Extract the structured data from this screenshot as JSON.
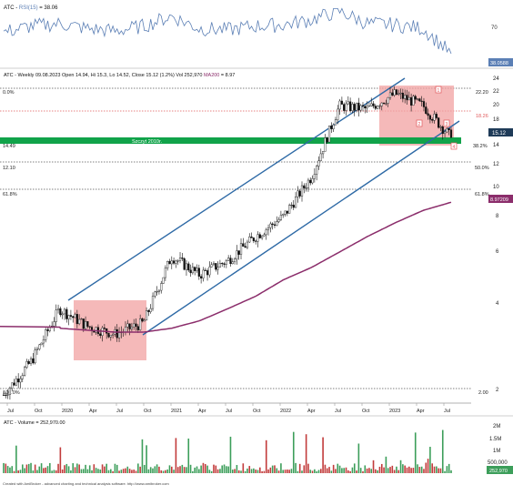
{
  "colors": {
    "rsi_line": "#5b7fb5",
    "price_candle": "#111111",
    "channel": "#2e6aa6",
    "ma200": "#8b2d6b",
    "zone_fill": "#f2a2a2",
    "support_band": "#11a34a",
    "support_label": "#2f8f3a",
    "level_red": "#e0585a",
    "volume_green": "#3c9e5a",
    "volume_red": "#c23b3b",
    "last_price_box": "#1f3b58",
    "grid": "#dcdcdc"
  },
  "rsi_panel": {
    "title_prefix": "ATC - ",
    "title_indicator": "RSI(15)",
    "title_value": " = 38.06",
    "level_label": "70",
    "last_value": "38.0588"
  },
  "price_panel": {
    "title_text": "ATC - Weekly 09.08.2023 Open 14.94, Hi 15.3, Lo 14.52, Close 15.12 (1.2%) Vol 252,970 ",
    "ma_label": "MA200",
    "ma_value": " = 8.97",
    "support_label": "Szczyt 2010r.",
    "fib_left": [
      "0.0%",
      "14.49",
      "12.10",
      "61.8%",
      "100.0%"
    ],
    "fib_right": [
      "22.20",
      "18.26",
      "38.2%",
      "50.0%",
      "61.8%",
      "2.00"
    ],
    "axis_labels": [
      "24",
      "22",
      "20",
      "18",
      "16",
      "14",
      "12",
      "10",
      "8",
      "6",
      "4",
      "2"
    ],
    "last_price": "15.12",
    "ma_last": "8.97209",
    "zone_marks": [
      "1",
      "2",
      "3",
      "4"
    ]
  },
  "x_axis": {
    "labels": [
      "Jul",
      "Oct",
      "2020",
      "Apr",
      "Jul",
      "Oct",
      "2021",
      "Apr",
      "Jul",
      "Oct",
      "2022",
      "Apr",
      "Jul",
      "Oct",
      "2023",
      "Apr",
      "Jul"
    ]
  },
  "volume_panel": {
    "title": "ATC - Volume = 252,970.00",
    "axis_labels": [
      "2M",
      "1.5M",
      "1M",
      "500,000"
    ],
    "last_value": "252,970"
  },
  "footer": {
    "credit": "Created with AmiBroker - advanced charting and technical analysis software. http://www.amibroker.com"
  },
  "chart_data": [
    {
      "type": "line",
      "title": "ATC - RSI(15) = 38.06",
      "ylim": [
        30,
        75
      ],
      "x": [
        "2019-07",
        "2019-10",
        "2020-01",
        "2020-04",
        "2020-07",
        "2020-10",
        "2021-01",
        "2021-04",
        "2021-07",
        "2021-10",
        "2022-01",
        "2022-04",
        "2022-07",
        "2022-10",
        "2023-01",
        "2023-04",
        "2023-08"
      ],
      "series": [
        {
          "values": [
            55,
            60,
            62,
            58,
            56,
            60,
            68,
            58,
            57,
            60,
            61,
            65,
            72,
            62,
            61,
            58,
            38
          ]
        }
      ]
    },
    {
      "type": "line",
      "title": "ATC - Weekly 09.08.2023 Open 14.94, Hi 15.3, Lo 14.52, Close 15.12 (1.2%) Vol 252,970 MA200 = 8.97",
      "y_scale": "log",
      "ylim": [
        2,
        24
      ],
      "x": [
        "2019-07",
        "2019-10",
        "2020-01",
        "2020-04",
        "2020-07",
        "2020-10",
        "2021-01",
        "2021-04",
        "2021-07",
        "2021-10",
        "2022-01",
        "2022-04",
        "2022-07",
        "2022-10",
        "2023-01",
        "2023-04",
        "2023-08"
      ],
      "series": [
        {
          "values": [
            1.9,
            2.5,
            3.8,
            3.3,
            3.1,
            3.4,
            5.8,
            5.0,
            5.6,
            6.8,
            8.0,
            11.0,
            19.5,
            19.0,
            21.5,
            19.5,
            15.12
          ]
        },
        {
          "name": "MA200",
          "values": [
            null,
            null,
            3.25,
            3.2,
            3.15,
            3.15,
            3.25,
            3.45,
            3.8,
            4.2,
            4.8,
            5.3,
            6.0,
            6.8,
            7.6,
            8.4,
            8.97
          ]
        }
      ],
      "levels": [
        22.2,
        18.26,
        14.49,
        12.1
      ],
      "support_zone": [
        14.0,
        15.1
      ]
    },
    {
      "type": "bar",
      "title": "ATC - Volume = 252,970.00",
      "ylim": [
        0,
        2000000
      ],
      "last_value": 252970
    }
  ]
}
